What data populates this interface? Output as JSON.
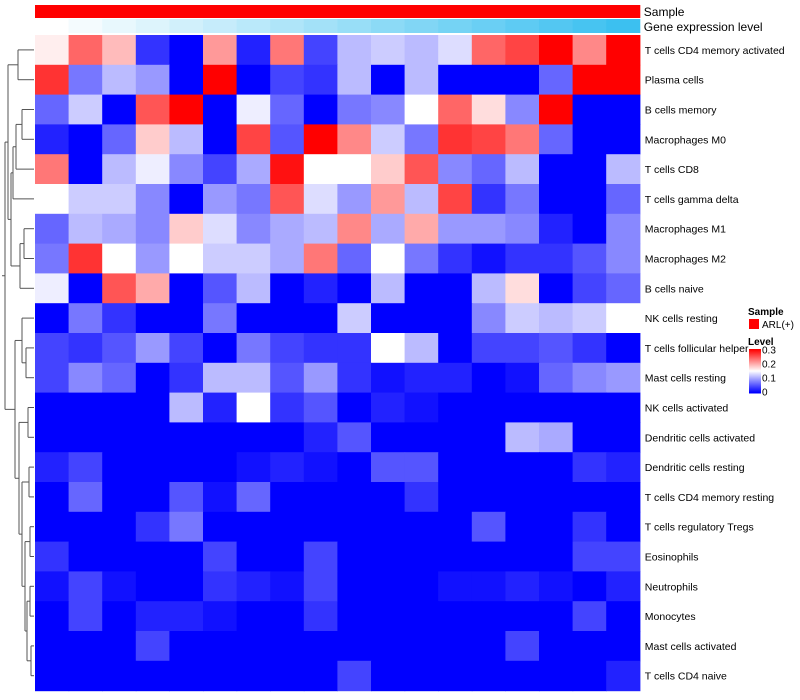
{
  "chart_data": {
    "type": "heatmap",
    "title": "",
    "xlabel": "",
    "ylabel": "",
    "top_annotations": [
      {
        "label": "Sample",
        "color": "#ff0000"
      },
      {
        "label": "Gene expression level",
        "gradient": [
          "#ffffff",
          "#3cc0f0"
        ]
      }
    ],
    "rows": [
      "T cells CD4 memory activated",
      "Plasma cells",
      "B cells memory",
      "Macrophages M0",
      "T cells CD8",
      "T cells gamma delta",
      "Macrophages M1",
      "Macrophages M2",
      "B cells naive",
      "NK cells resting",
      "T cells follicular helper",
      "Mast cells resting",
      "NK cells activated",
      "Dendritic cells activated",
      "Dendritic cells resting",
      "T cells CD4 memory resting",
      "T cells regulatory  Tregs",
      "Eosinophils",
      "Neutrophils",
      "Monocytes",
      "Mast cells activated",
      "T cells CD4 naive"
    ],
    "n_columns": 18,
    "values": [
      [
        0.16,
        0.24,
        0.19,
        0.03,
        0.0,
        0.21,
        0.02,
        0.23,
        0.04,
        0.11,
        0.12,
        0.11,
        0.13,
        0.24,
        0.26,
        0.3,
        0.22,
        0.3
      ],
      [
        0.27,
        0.07,
        0.11,
        0.09,
        0.0,
        0.3,
        0.0,
        0.04,
        0.03,
        0.11,
        0.0,
        0.11,
        0.0,
        0.0,
        0.0,
        0.06,
        0.3,
        0.3
      ],
      [
        0.06,
        0.12,
        0.0,
        0.25,
        0.3,
        0.0,
        0.14,
        0.06,
        0.0,
        0.07,
        0.08,
        0.15,
        0.24,
        0.17,
        0.08,
        0.3,
        0.0,
        0.0
      ],
      [
        0.02,
        0.0,
        0.06,
        0.18,
        0.11,
        0.0,
        0.26,
        0.05,
        0.3,
        0.22,
        0.12,
        0.07,
        0.27,
        0.26,
        0.23,
        0.06,
        0.0,
        0.0
      ],
      [
        0.23,
        0.0,
        0.11,
        0.14,
        0.08,
        0.04,
        0.1,
        0.29,
        0.15,
        0.15,
        0.18,
        0.25,
        0.08,
        0.06,
        0.11,
        0.0,
        0.0,
        0.11
      ],
      [
        0.15,
        0.12,
        0.12,
        0.08,
        0.0,
        0.09,
        0.07,
        0.25,
        0.13,
        0.09,
        0.21,
        0.11,
        0.26,
        0.03,
        0.07,
        0.0,
        0.0,
        0.06
      ],
      [
        0.06,
        0.11,
        0.1,
        0.08,
        0.18,
        0.13,
        0.08,
        0.1,
        0.11,
        0.22,
        0.1,
        0.2,
        0.09,
        0.09,
        0.08,
        0.02,
        0.0,
        0.08
      ],
      [
        0.07,
        0.27,
        0.15,
        0.09,
        0.15,
        0.12,
        0.12,
        0.1,
        0.23,
        0.06,
        0.15,
        0.07,
        0.03,
        0.01,
        0.03,
        0.03,
        0.05,
        0.08
      ],
      [
        0.14,
        0.0,
        0.25,
        0.2,
        0.0,
        0.05,
        0.11,
        0.0,
        0.02,
        0.0,
        0.11,
        0.0,
        0.0,
        0.11,
        0.17,
        0.0,
        0.04,
        0.06
      ],
      [
        0.0,
        0.07,
        0.03,
        0.0,
        0.0,
        0.07,
        0.0,
        0.0,
        0.0,
        0.12,
        0.0,
        0.0,
        0.0,
        0.08,
        0.12,
        0.11,
        0.12,
        0.15
      ],
      [
        0.04,
        0.03,
        0.05,
        0.09,
        0.04,
        0.0,
        0.07,
        0.04,
        0.03,
        0.03,
        0.15,
        0.11,
        0.0,
        0.04,
        0.04,
        0.05,
        0.03,
        0.0
      ],
      [
        0.04,
        0.08,
        0.06,
        0.0,
        0.03,
        0.11,
        0.11,
        0.05,
        0.09,
        0.03,
        0.01,
        0.02,
        0.02,
        0.0,
        0.01,
        0.06,
        0.08,
        0.09
      ],
      [
        0.0,
        0.0,
        0.0,
        0.0,
        0.11,
        0.02,
        0.15,
        0.03,
        0.05,
        0.0,
        0.02,
        0.01,
        0.0,
        0.0,
        0.0,
        0.0,
        0.0,
        0.0
      ],
      [
        0.0,
        0.0,
        0.0,
        0.0,
        0.0,
        0.0,
        0.0,
        0.0,
        0.02,
        0.05,
        0.0,
        0.0,
        0.0,
        0.0,
        0.11,
        0.1,
        0.0,
        0.0
      ],
      [
        0.02,
        0.04,
        0.0,
        0.0,
        0.0,
        0.0,
        0.01,
        0.02,
        0.01,
        0.0,
        0.05,
        0.05,
        0.0,
        0.0,
        0.0,
        0.0,
        0.03,
        0.02
      ],
      [
        0.0,
        0.06,
        0.0,
        0.0,
        0.05,
        0.01,
        0.06,
        0.0,
        0.0,
        0.0,
        0.0,
        0.03,
        0.0,
        0.0,
        0.0,
        0.0,
        0.0,
        0.0
      ],
      [
        0.0,
        0.0,
        0.0,
        0.03,
        0.07,
        0.0,
        0.0,
        0.0,
        0.0,
        0.0,
        0.0,
        0.0,
        0.0,
        0.05,
        0.0,
        0.0,
        0.03,
        0.0
      ],
      [
        0.03,
        0.0,
        0.0,
        0.0,
        0.0,
        0.04,
        0.0,
        0.0,
        0.04,
        0.0,
        0.0,
        0.0,
        0.0,
        0.0,
        0.0,
        0.0,
        0.04,
        0.04
      ],
      [
        0.01,
        0.04,
        0.01,
        0.0,
        0.0,
        0.03,
        0.02,
        0.01,
        0.04,
        0.0,
        0.0,
        0.0,
        0.01,
        0.01,
        0.02,
        0.01,
        0.0,
        0.02
      ],
      [
        0.0,
        0.04,
        0.0,
        0.02,
        0.02,
        0.01,
        0.0,
        0.0,
        0.03,
        0.0,
        0.0,
        0.0,
        0.0,
        0.0,
        0.0,
        0.0,
        0.04,
        0.0
      ],
      [
        0.0,
        0.0,
        0.0,
        0.04,
        0.0,
        0.0,
        0.0,
        0.0,
        0.0,
        0.0,
        0.0,
        0.0,
        0.0,
        0.0,
        0.04,
        0.0,
        0.0,
        0.0
      ],
      [
        0.0,
        0.0,
        0.0,
        0.0,
        0.0,
        0.0,
        0.0,
        0.0,
        0.0,
        0.04,
        0.0,
        0.0,
        0.0,
        0.0,
        0.0,
        0.0,
        0.0,
        0.02
      ]
    ],
    "color_scale": {
      "min": 0,
      "max": 0.3,
      "low_color": "#0000ff",
      "mid_color": "#ffffff",
      "high_color": "#ff0000",
      "mid_value": 0.15
    },
    "legend": {
      "position": "right",
      "sample_title": "Sample",
      "sample_entries": [
        {
          "label": "ARL(+)",
          "color": "#ff0000"
        }
      ],
      "level_title": "Level",
      "level_ticks": [
        "0.3",
        "0.2",
        "0.1",
        "0"
      ]
    },
    "row_dendrogram": true,
    "grid": false
  }
}
